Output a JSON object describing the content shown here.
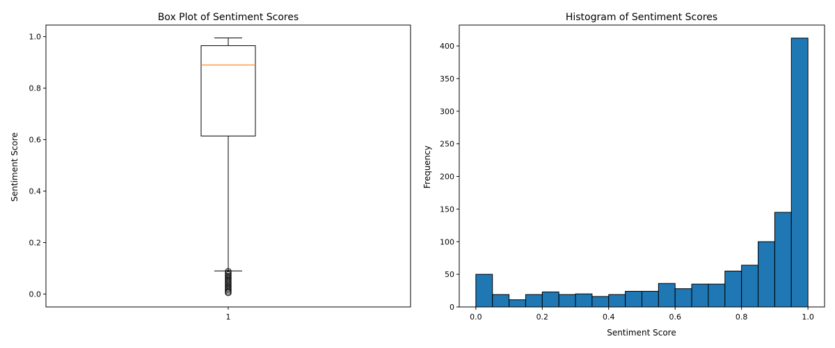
{
  "chart_data": [
    {
      "type": "box",
      "title": "Box Plot of Sentiment Scores",
      "xlabel": "",
      "ylabel": "Sentiment Score",
      "categories": [
        "1"
      ],
      "ylim": [
        -0.05,
        1.045
      ],
      "yticks": [
        "0.0",
        "0.2",
        "0.4",
        "0.6",
        "0.8",
        "1.0"
      ],
      "ytick_values": [
        0.0,
        0.2,
        0.4,
        0.6,
        0.8,
        1.0
      ],
      "box": {
        "whisker_low": 0.09,
        "q1": 0.614,
        "median": 0.89,
        "q3": 0.965,
        "whisker_high": 0.995,
        "outliers": [
          0.088,
          0.082,
          0.076,
          0.07,
          0.064,
          0.058,
          0.052,
          0.046,
          0.04,
          0.034,
          0.028,
          0.022,
          0.016,
          0.01,
          0.005
        ]
      },
      "colors": {
        "box": "#000000",
        "median": "#ff7f0e"
      },
      "grid": false
    },
    {
      "type": "bar",
      "title": "Histogram of Sentiment Scores",
      "xlabel": "Sentiment Score",
      "ylabel": "Frequency",
      "xlim": [
        -0.05,
        1.05
      ],
      "ylim": [
        0,
        432
      ],
      "xticks": [
        "0.0",
        "0.2",
        "0.4",
        "0.6",
        "0.8",
        "1.0"
      ],
      "xtick_values": [
        0.0,
        0.2,
        0.4,
        0.6,
        0.8,
        1.0
      ],
      "yticks": [
        "0",
        "50",
        "100",
        "150",
        "200",
        "250",
        "300",
        "350",
        "400"
      ],
      "ytick_values": [
        0,
        50,
        100,
        150,
        200,
        250,
        300,
        350,
        400
      ],
      "bin_edges": [
        0.0,
        0.05,
        0.1,
        0.15,
        0.2,
        0.25,
        0.3,
        0.35,
        0.4,
        0.45,
        0.5,
        0.55,
        0.6,
        0.65,
        0.7,
        0.75,
        0.8,
        0.85,
        0.9,
        0.95,
        1.0
      ],
      "values": [
        50,
        19,
        11,
        19,
        23,
        19,
        20,
        16,
        19,
        24,
        24,
        36,
        28,
        35,
        35,
        55,
        64,
        100,
        145,
        412
      ],
      "colors": {
        "bar": "#1f77b4",
        "edge": "#000000"
      },
      "grid": false
    }
  ]
}
